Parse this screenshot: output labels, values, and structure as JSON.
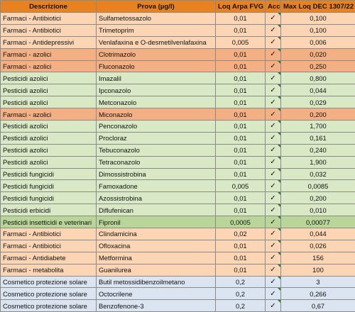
{
  "header": {
    "descrizione": "Descrizione",
    "prova": "Prova (µg/l)",
    "loq": "Loq Arpa FVG",
    "acc": "Acc",
    "max": "Max Loq DEC 1307/22"
  },
  "rows": [
    {
      "desc": "Farmaci - Antibiotici",
      "prova": "Sulfametossazolo",
      "loq": "0,01",
      "acc": "✓",
      "max": "0,100",
      "style": "orange-light"
    },
    {
      "desc": "Farmaci - Antibiotici",
      "prova": "Trimetoprim",
      "loq": "0,01",
      "acc": "✓",
      "max": "0,100",
      "style": "orange-light"
    },
    {
      "desc": "Farmaci - Antidepressivi",
      "prova": "Venlafaxina e O-desmetilvenlafaxina",
      "loq": "0,005",
      "acc": "✓",
      "max": "0,006",
      "style": "orange-light"
    },
    {
      "desc": "Farmaci - azolici",
      "prova": "Clotrimazolo",
      "loq": "0,01",
      "acc": "✓",
      "max": "0,020",
      "style": "orange-dark"
    },
    {
      "desc": "Farmaci - azolici",
      "prova": "Fluconazolo",
      "loq": "0,01",
      "acc": "✓",
      "max": "0,250",
      "style": "orange-dark"
    },
    {
      "desc": "Pesticidi azolici",
      "prova": "Imazalil",
      "loq": "0,01",
      "acc": "✓",
      "max": "0,800",
      "style": "green-light"
    },
    {
      "desc": "Pesticidi azolici",
      "prova": "Ipconazolo",
      "loq": "0,01",
      "acc": "✓",
      "max": "0,044",
      "style": "green-light"
    },
    {
      "desc": "Pesticidi azolici",
      "prova": "Metconazolo",
      "loq": "0,01",
      "acc": "✓",
      "max": "0,029",
      "style": "green-light"
    },
    {
      "desc": "Farmaci - azolici",
      "prova": "Miconazolo",
      "loq": "0,01",
      "acc": "✓",
      "max": "0,200",
      "style": "orange-dark"
    },
    {
      "desc": "Pesticidi azolici",
      "prova": "Penconazolo",
      "loq": "0,01",
      "acc": "✓",
      "max": "1,700",
      "style": "green-light"
    },
    {
      "desc": "Pesticidi azolici",
      "prova": "Procloraz",
      "loq": "0,01",
      "acc": "✓",
      "max": "0,161",
      "style": "green-light"
    },
    {
      "desc": "Pesticidi azolici",
      "prova": "Tebuconazolo",
      "loq": "0,01",
      "acc": "✓",
      "max": "0,240",
      "style": "green-light"
    },
    {
      "desc": "Pesticidi azolici",
      "prova": "Tetraconazolo",
      "loq": "0,01",
      "acc": "✓",
      "max": "1,900",
      "style": "green-light"
    },
    {
      "desc": "Pesticidi fungicidi",
      "prova": "Dimossistrobina",
      "loq": "0,01",
      "acc": "✓",
      "max": "0,032",
      "style": "green-light"
    },
    {
      "desc": "Pesticidi fungicidi",
      "prova": "Famoxadone",
      "loq": "0,005",
      "acc": "✓",
      "max": "0,0085",
      "style": "green-light"
    },
    {
      "desc": "Pesticidi fungicidi",
      "prova": "Azossistrobina",
      "loq": "0,01",
      "acc": "✓",
      "max": "0,200",
      "style": "green-light"
    },
    {
      "desc": "Pesticidi erbicidi",
      "prova": "Diflufenican",
      "loq": "0,01",
      "acc": "✓",
      "max": "0,010",
      "style": "green-light"
    },
    {
      "desc": "Pesticidi insetticidi e veterinari",
      "prova": "Fipronil",
      "loq": "0,0005",
      "acc": "✓",
      "max": "0,00077",
      "style": "green-dark"
    },
    {
      "desc": "Farmaci - Antibiotici",
      "prova": "Clindamicina",
      "loq": "0,02",
      "acc": "✓",
      "max": "0,044",
      "style": "orange-light"
    },
    {
      "desc": "Farmaci - Antibiotici",
      "prova": "Ofloxacina",
      "loq": "0,01",
      "acc": "✓",
      "max": "0,026",
      "style": "orange-light"
    },
    {
      "desc": "Farmaci - Antidiabete",
      "prova": "Metformina",
      "loq": "0,01",
      "acc": "✓",
      "max": "156",
      "style": "orange-light"
    },
    {
      "desc": "Farmaci - metabolita",
      "prova": "Guanilurea",
      "loq": "0,01",
      "acc": "✓",
      "max": "100",
      "style": "orange-light"
    },
    {
      "desc": "Cosmetico protezione solare",
      "prova": "Butil metossidibenzoilmetano",
      "loq": "0,2",
      "acc": "✓",
      "max": "3",
      "style": "blue-light"
    },
    {
      "desc": "Cosmetico protezione solare",
      "prova": "Octocrilene",
      "loq": "0,2",
      "acc": "✓",
      "max": "0,266",
      "style": "blue-light"
    },
    {
      "desc": "Cosmetico protezione solare",
      "prova": "Benzofenone-3",
      "loq": "0,2",
      "acc": "✓",
      "max": "0,67",
      "style": "blue-light"
    }
  ]
}
